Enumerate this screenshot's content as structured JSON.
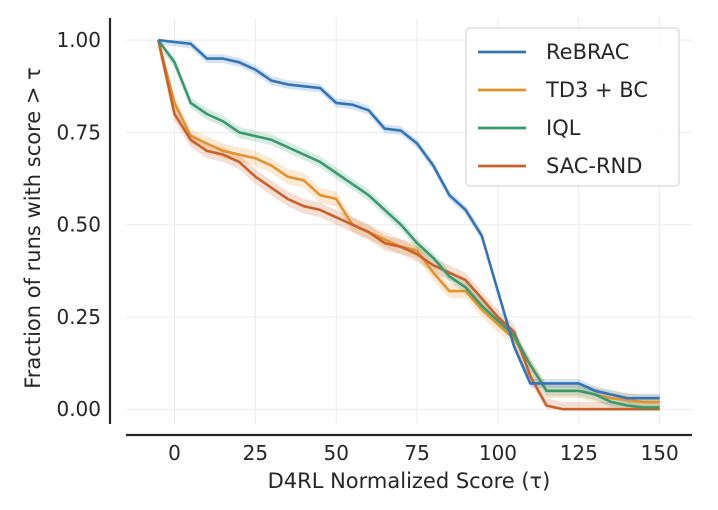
{
  "chart_data": {
    "type": "line",
    "title": "",
    "xlabel": "D4RL Normalized Score (τ)",
    "ylabel": "Fraction of runs with score > τ",
    "xlim": [
      -15,
      160
    ],
    "ylim": [
      -0.04,
      1.06
    ],
    "xticks": [
      0,
      25,
      50,
      75,
      100,
      125,
      150
    ],
    "yticks": [
      0.0,
      0.25,
      0.5,
      0.75,
      1.0
    ],
    "xtick_labels": [
      "0",
      "25",
      "50",
      "75",
      "100",
      "125",
      "150"
    ],
    "ytick_labels": [
      "0.00",
      "0.25",
      "0.50",
      "0.75",
      "1.00"
    ],
    "grid": true,
    "legend_position": "top-right",
    "series": [
      {
        "name": "ReBRAC",
        "color": "#3274b5",
        "x": [
          -5,
          0,
          5,
          10,
          15,
          20,
          25,
          30,
          35,
          40,
          45,
          50,
          55,
          60,
          65,
          70,
          75,
          80,
          85,
          90,
          95,
          100,
          105,
          110,
          115,
          120,
          125,
          130,
          135,
          140,
          145,
          150
        ],
        "y": [
          1.0,
          0.995,
          0.99,
          0.95,
          0.95,
          0.94,
          0.92,
          0.89,
          0.88,
          0.875,
          0.87,
          0.83,
          0.825,
          0.81,
          0.76,
          0.755,
          0.72,
          0.66,
          0.58,
          0.54,
          0.47,
          0.32,
          0.17,
          0.07,
          0.07,
          0.07,
          0.07,
          0.05,
          0.04,
          0.03,
          0.03,
          0.03
        ],
        "band": 0.012
      },
      {
        "name": "TD3 + BC",
        "color": "#e1932e",
        "x": [
          -5,
          0,
          5,
          10,
          15,
          20,
          25,
          30,
          35,
          40,
          45,
          50,
          55,
          60,
          65,
          70,
          75,
          80,
          85,
          90,
          95,
          100,
          105,
          110,
          115,
          120,
          125,
          130,
          135,
          140,
          145,
          150
        ],
        "y": [
          1.0,
          0.83,
          0.74,
          0.72,
          0.7,
          0.69,
          0.68,
          0.66,
          0.63,
          0.62,
          0.58,
          0.57,
          0.5,
          0.48,
          0.46,
          0.44,
          0.43,
          0.37,
          0.32,
          0.32,
          0.27,
          0.23,
          0.19,
          0.12,
          0.05,
          0.05,
          0.05,
          0.04,
          0.03,
          0.025,
          0.02,
          0.02
        ],
        "band": 0.02
      },
      {
        "name": "IQL",
        "color": "#3a9a6e",
        "x": [
          -5,
          0,
          5,
          10,
          15,
          20,
          25,
          30,
          35,
          40,
          45,
          50,
          55,
          60,
          65,
          70,
          75,
          80,
          85,
          90,
          95,
          100,
          105,
          110,
          115,
          120,
          125,
          130,
          135,
          140,
          145,
          150
        ],
        "y": [
          1.0,
          0.94,
          0.83,
          0.8,
          0.78,
          0.75,
          0.74,
          0.73,
          0.71,
          0.69,
          0.67,
          0.64,
          0.61,
          0.58,
          0.54,
          0.5,
          0.45,
          0.41,
          0.36,
          0.33,
          0.28,
          0.24,
          0.2,
          0.12,
          0.05,
          0.05,
          0.05,
          0.04,
          0.02,
          0.01,
          0.005,
          0.005
        ],
        "band": 0.015
      },
      {
        "name": "SAC-RND",
        "color": "#c8612a",
        "x": [
          -5,
          0,
          5,
          10,
          15,
          20,
          25,
          30,
          35,
          40,
          45,
          50,
          55,
          60,
          65,
          70,
          75,
          80,
          85,
          90,
          95,
          100,
          105,
          110,
          115,
          120,
          125,
          130,
          135,
          140,
          145,
          150
        ],
        "y": [
          1.0,
          0.8,
          0.73,
          0.7,
          0.69,
          0.67,
          0.63,
          0.6,
          0.57,
          0.55,
          0.54,
          0.52,
          0.5,
          0.48,
          0.45,
          0.44,
          0.42,
          0.39,
          0.37,
          0.35,
          0.3,
          0.25,
          0.21,
          0.09,
          0.01,
          0.0,
          0.0,
          0.0,
          0.0,
          0.0,
          0.0,
          0.0
        ],
        "band": 0.02
      }
    ]
  }
}
